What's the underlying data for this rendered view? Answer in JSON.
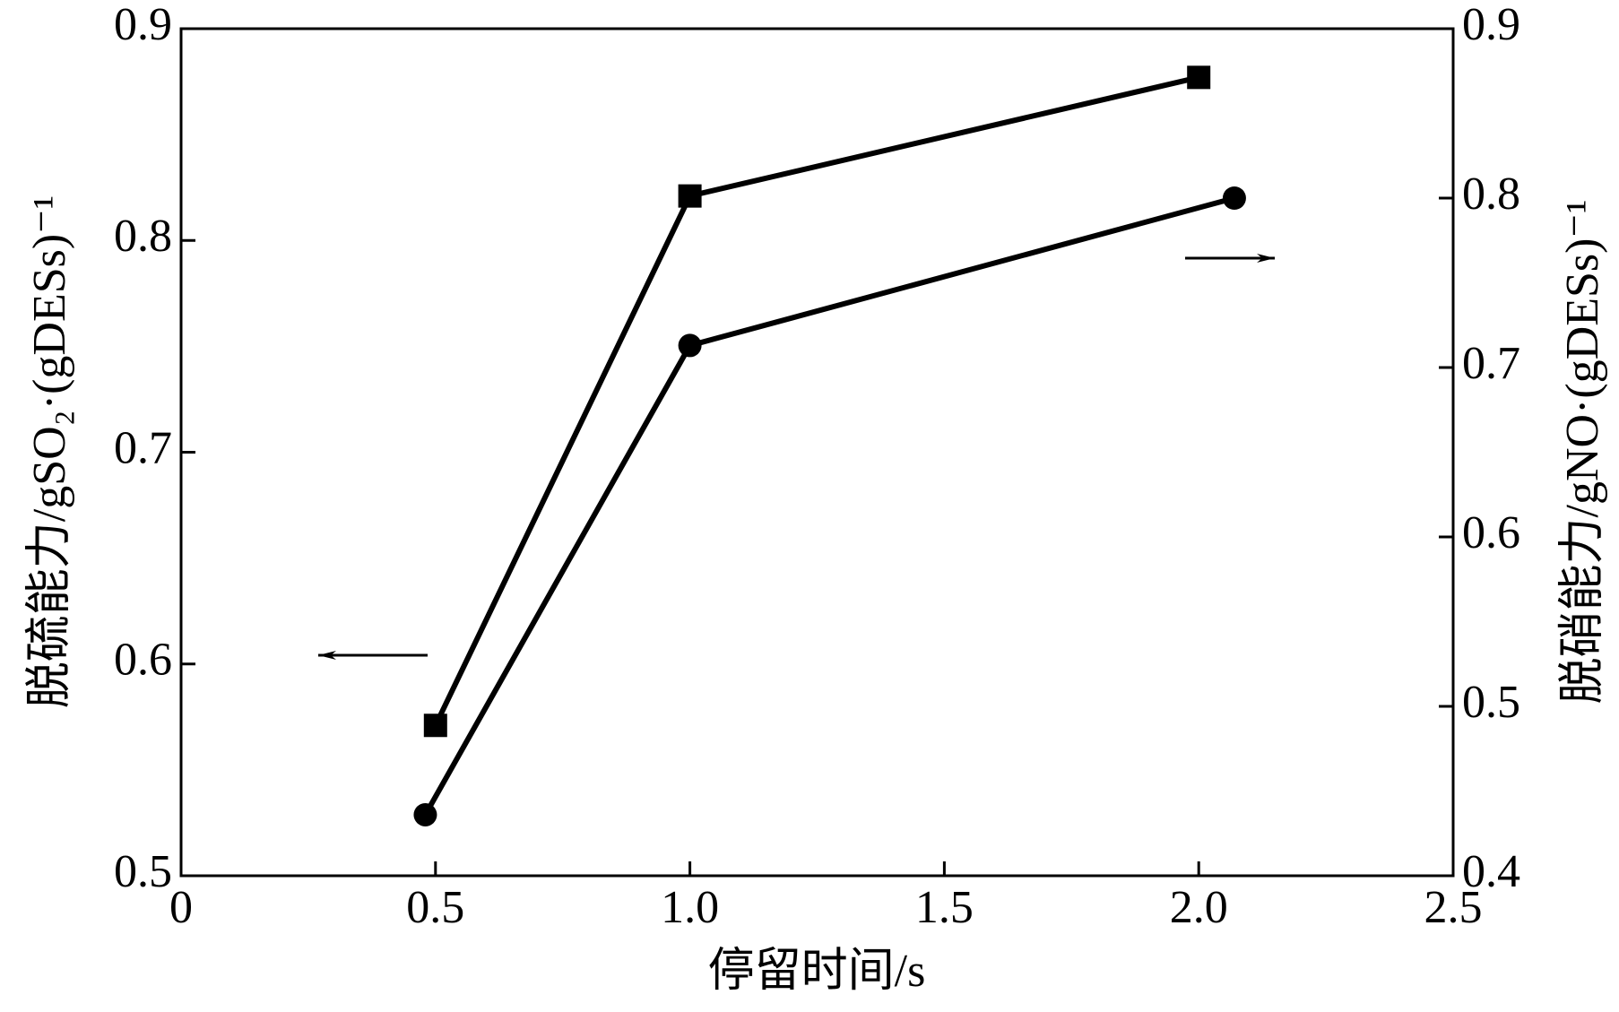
{
  "chart_data": {
    "type": "line",
    "x_label": "停留时间/s",
    "y_label": "脱硫能力/gSO₂·(gDESs)⁻¹",
    "y2_label": "脱硝能力/gNO·(gDESs)⁻¹",
    "xlim": [
      0,
      2.5
    ],
    "xticks": [
      0,
      0.5,
      {
        "value": 1,
        "label": "1.0"
      },
      1.5,
      {
        "value": 2,
        "label": "2.0"
      },
      2.5
    ],
    "ylim": [
      0.5,
      0.9
    ],
    "yticks": [
      0.5,
      0.6,
      0.7,
      0.8,
      0.9
    ],
    "y2lim": [
      0.4,
      0.9
    ],
    "y2ticks": [
      0.4,
      0.5,
      0.6,
      0.7,
      0.8,
      0.9
    ],
    "series": [
      {
        "marker": "square",
        "color": "#000000",
        "x": [
          0.5,
          1.0,
          2.0
        ],
        "values": [
          0.571,
          0.821,
          0.877
        ]
      },
      {
        "marker": "circle",
        "color": "#000000",
        "axis": "y2",
        "x": [
          0.48,
          1.0,
          2.07
        ],
        "values": [
          0.436,
          0.713,
          0.8
        ]
      }
    ]
  }
}
